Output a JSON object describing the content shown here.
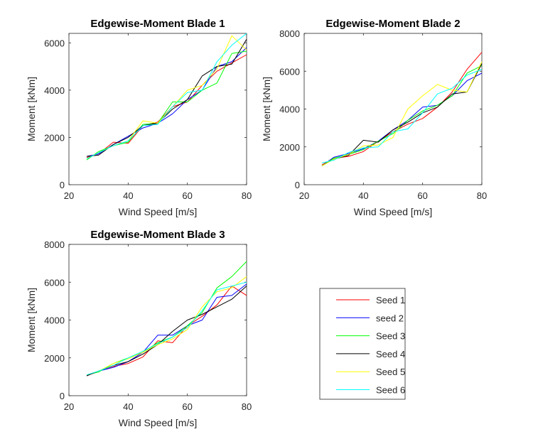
{
  "chart_data": [
    {
      "type": "line",
      "title": "Edgewise-Moment Blade 1",
      "xlabel": "Wind Speed [m/s]",
      "ylabel": "Moment [kNm]",
      "xlim": [
        20,
        80
      ],
      "ylim": [
        0,
        6400
      ],
      "xticks": [
        20,
        40,
        60,
        80
      ],
      "yticks": [
        0,
        2000,
        4000,
        6000
      ],
      "grid": false,
      "x": [
        26,
        30,
        35,
        40,
        45,
        50,
        55,
        60,
        65,
        70,
        75,
        80
      ],
      "series": [
        {
          "name": "Seed 1",
          "color": "#ff0000",
          "values": [
            1150,
            1300,
            1800,
            1750,
            2500,
            2650,
            3300,
            3500,
            4200,
            4800,
            5150,
            5500
          ]
        },
        {
          "name": "seed 2",
          "color": "#0000ff",
          "values": [
            1200,
            1300,
            1700,
            2050,
            2400,
            2600,
            3000,
            3600,
            4000,
            5000,
            5200,
            5800
          ]
        },
        {
          "name": "Seed 3",
          "color": "#00ff00",
          "values": [
            1050,
            1400,
            1650,
            1800,
            2550,
            2600,
            3500,
            3500,
            4000,
            4300,
            5550,
            5650
          ]
        },
        {
          "name": "Seed 4",
          "color": "#000000",
          "values": [
            1200,
            1250,
            1700,
            2000,
            2500,
            2600,
            3200,
            3600,
            4600,
            5000,
            5100,
            6150
          ]
        },
        {
          "name": "Seed 5",
          "color": "#ffff00",
          "values": [
            1100,
            1350,
            1650,
            1850,
            2700,
            2600,
            3300,
            4000,
            4200,
            4900,
            6300,
            5700
          ]
        },
        {
          "name": "Seed 6",
          "color": "#00ffff",
          "values": [
            1100,
            1350,
            1650,
            1850,
            2500,
            2550,
            3300,
            3900,
            4000,
            5200,
            5900,
            6400
          ]
        }
      ]
    },
    {
      "type": "line",
      "title": "Edgewise-Moment Blade 2",
      "xlabel": "Wind Speed [m/s]",
      "ylabel": "Moment [kNm]",
      "xlim": [
        20,
        80
      ],
      "ylim": [
        0,
        8000
      ],
      "xticks": [
        20,
        40,
        60,
        80
      ],
      "yticks": [
        0,
        2000,
        4000,
        6000,
        8000
      ],
      "grid": false,
      "x": [
        26,
        30,
        35,
        40,
        45,
        50,
        55,
        60,
        65,
        70,
        75,
        80
      ],
      "series": [
        {
          "name": "Seed 1",
          "color": "#ff0000",
          "values": [
            1050,
            1400,
            1500,
            1750,
            2300,
            2800,
            3200,
            3500,
            4100,
            4900,
            6100,
            7000
          ]
        },
        {
          "name": "seed 2",
          "color": "#0000ff",
          "values": [
            1000,
            1450,
            1650,
            1900,
            2300,
            2900,
            3400,
            4100,
            4200,
            4700,
            5500,
            5900
          ]
        },
        {
          "name": "Seed 3",
          "color": "#00ff00",
          "values": [
            1000,
            1400,
            1600,
            1850,
            2300,
            2700,
            3400,
            3900,
            4200,
            4700,
            5900,
            6300
          ]
        },
        {
          "name": "Seed 4",
          "color": "#000000",
          "values": [
            1000,
            1350,
            1550,
            2350,
            2250,
            2900,
            3300,
            3800,
            4100,
            4800,
            4900,
            6400
          ]
        },
        {
          "name": "Seed 5",
          "color": "#ffff00",
          "values": [
            1000,
            1350,
            1600,
            2050,
            2100,
            2500,
            4000,
            4700,
            5300,
            5000,
            4900,
            6500
          ]
        },
        {
          "name": "Seed 6",
          "color": "#00ffff",
          "values": [
            1150,
            1300,
            1700,
            1950,
            2000,
            2800,
            2950,
            3800,
            4800,
            5100,
            5800,
            6100
          ]
        }
      ]
    },
    {
      "type": "line",
      "title": "Edgewise-Moment Blade 3",
      "xlabel": "Wind Speed [m/s]",
      "ylabel": "Moment [kNm]",
      "xlim": [
        20,
        80
      ],
      "ylim": [
        0,
        8000
      ],
      "xticks": [
        20,
        40,
        60,
        80
      ],
      "yticks": [
        0,
        2000,
        4000,
        6000,
        8000
      ],
      "grid": false,
      "x": [
        26,
        30,
        35,
        40,
        45,
        50,
        55,
        60,
        65,
        70,
        75,
        80
      ],
      "series": [
        {
          "name": "Seed 1",
          "color": "#ff0000",
          "values": [
            1050,
            1300,
            1550,
            1700,
            2050,
            2900,
            2800,
            3700,
            4200,
            4800,
            5800,
            5300
          ]
        },
        {
          "name": "seed 2",
          "color": "#0000ff",
          "values": [
            1100,
            1300,
            1500,
            1800,
            2300,
            3200,
            3200,
            3700,
            4000,
            5200,
            5300,
            5900
          ]
        },
        {
          "name": "Seed 3",
          "color": "#00ff00",
          "values": [
            1100,
            1250,
            1700,
            2000,
            2300,
            2800,
            3100,
            3700,
            4400,
            5700,
            6300,
            7100
          ]
        },
        {
          "name": "Seed 4",
          "color": "#000000",
          "values": [
            1050,
            1300,
            1600,
            1800,
            2200,
            2700,
            3400,
            4000,
            4300,
            4700,
            5100,
            5800
          ]
        },
        {
          "name": "Seed 5",
          "color": "#ffff00",
          "values": [
            1100,
            1300,
            1700,
            1950,
            2300,
            2700,
            3000,
            3500,
            4700,
            5500,
            5700,
            6300
          ]
        },
        {
          "name": "Seed 6",
          "color": "#00ffff",
          "values": [
            1100,
            1300,
            1600,
            2000,
            2350,
            2750,
            3100,
            3600,
            4500,
            5600,
            5800,
            6000
          ]
        }
      ]
    }
  ],
  "legend": {
    "placement": "bottom-right panel",
    "items": [
      {
        "label": "Seed 1",
        "color": "#ff0000"
      },
      {
        "label": "seed 2",
        "color": "#0000ff"
      },
      {
        "label": "Seed 3",
        "color": "#00ff00"
      },
      {
        "label": "Seed 4",
        "color": "#000000"
      },
      {
        "label": "Seed 5",
        "color": "#ffff00"
      },
      {
        "label": "Seed 6",
        "color": "#00ffff"
      }
    ]
  }
}
